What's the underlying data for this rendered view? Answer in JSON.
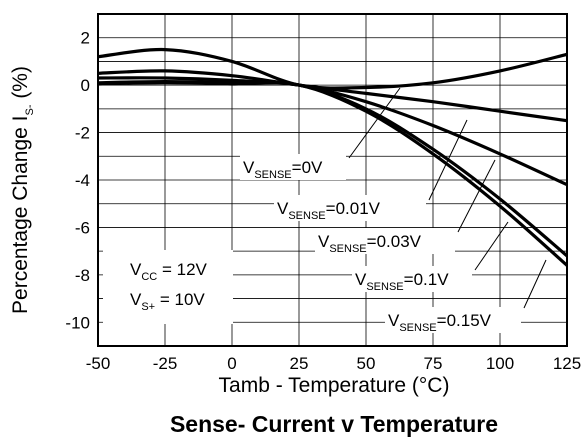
{
  "chart_data": {
    "type": "line",
    "title": "Sense- Current v Temperature",
    "xlabel": "Tamb - Temperature (°C)",
    "ylabel_main": "Percentage Change I",
    "ylabel_sub": "S-",
    "ylabel_tail": " (%)",
    "xlim": [
      -50,
      125
    ],
    "ylim": [
      -11,
      3
    ],
    "xticks": [
      "-50",
      "-25",
      "0",
      "25",
      "50",
      "75",
      "100",
      "125"
    ],
    "yticks": [
      "2",
      "0",
      "-2",
      "-4",
      "-6",
      "-8",
      "-10"
    ],
    "grid": true,
    "conditions": {
      "vcc": {
        "main": "V",
        "sub": "CC",
        "tail": " = 12V"
      },
      "vs": {
        "main": "V",
        "sub": "S+",
        "tail": " = 10V"
      }
    },
    "series": [
      {
        "label_main": "V",
        "label_sub": "SENSE",
        "label_tail": "=0V",
        "x": [
          -50,
          -25,
          0,
          25,
          50,
          75,
          100,
          125
        ],
        "y": [
          1.2,
          1.5,
          1.0,
          0.0,
          -0.1,
          0.1,
          0.6,
          1.3
        ]
      },
      {
        "label_main": "V",
        "label_sub": "SENSE",
        "label_tail": "=0.01V",
        "x": [
          -50,
          -25,
          0,
          25,
          50,
          75,
          100,
          125
        ],
        "y": [
          0.5,
          0.6,
          0.4,
          0.0,
          -0.35,
          -0.7,
          -1.1,
          -1.5
        ]
      },
      {
        "label_main": "V",
        "label_sub": "SENSE",
        "label_tail": "=0.03V",
        "x": [
          -50,
          -25,
          0,
          25,
          50,
          75,
          100,
          125
        ],
        "y": [
          0.3,
          0.3,
          0.2,
          0.0,
          -0.7,
          -1.7,
          -2.9,
          -4.2
        ]
      },
      {
        "label_main": "V",
        "label_sub": "SENSE",
        "label_tail": "=0.1V",
        "x": [
          -50,
          -25,
          0,
          25,
          50,
          75,
          100,
          125
        ],
        "y": [
          0.1,
          0.15,
          0.1,
          0.0,
          -1.0,
          -2.7,
          -4.8,
          -7.2
        ]
      },
      {
        "label_main": "V",
        "label_sub": "SENSE",
        "label_tail": "=0.15V",
        "x": [
          -50,
          -25,
          0,
          25,
          50,
          75,
          100,
          125
        ],
        "y": [
          0.05,
          0.1,
          0.05,
          0.0,
          -1.1,
          -2.9,
          -5.1,
          -7.6
        ]
      }
    ]
  }
}
